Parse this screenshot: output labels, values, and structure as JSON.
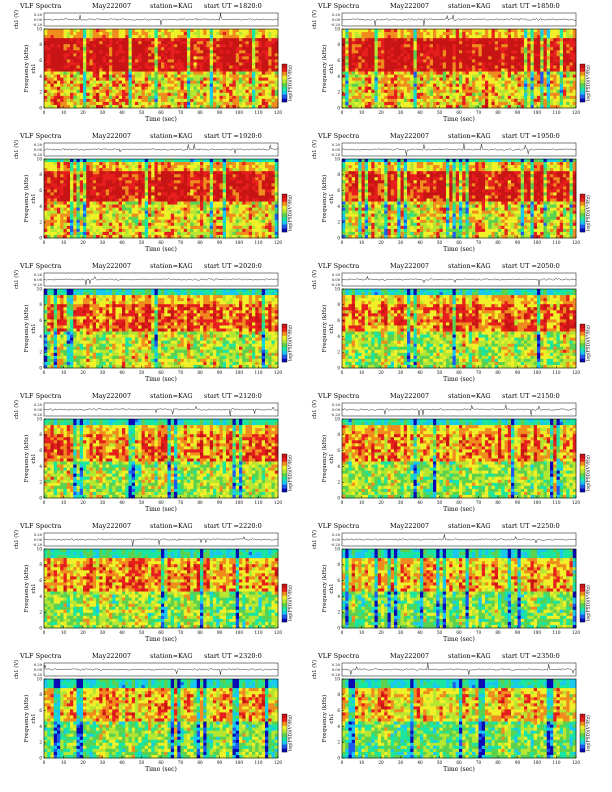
{
  "common": {
    "title_label": "VLF Spectra",
    "station": "station=KAG",
    "xlabel": "Time  (sec)",
    "ylabel_top": "ch1 (V)",
    "ylabel_spec": "Frequency (kHz)",
    "ylabel_spec_prefix": "ch1",
    "colorbar_label": "log(PSD)(V²/Hz)",
    "x_ticks": [
      "0",
      "10",
      "20",
      "30",
      "40",
      "50",
      "60",
      "70",
      "80",
      "90",
      "100",
      "110",
      "120"
    ],
    "y_ticks": [
      "0",
      "2",
      "4",
      "6",
      "8",
      "10"
    ],
    "top_ticks": [
      "0.20",
      "0.00",
      "-0.20"
    ],
    "cmap": [
      "#0a0ab4",
      "#1e5af0",
      "#19c8f0",
      "#19e6a0",
      "#5ad250",
      "#b4e632",
      "#f0f028",
      "#f08c1e",
      "#e61e1e",
      "#c81414"
    ]
  },
  "chart_data": [
    {
      "type": "heatmap",
      "date": "May222007",
      "ut": "start  UT =1820:0",
      "x_range": [
        0,
        120
      ],
      "y_range_khz": [
        0,
        10
      ],
      "band_top_khz": 10,
      "intensity": 0.95
    },
    {
      "type": "heatmap",
      "date": "May222007",
      "ut": "start  UT =1850:0",
      "x_range": [
        0,
        120
      ],
      "y_range_khz": [
        0,
        10
      ],
      "band_top_khz": 10,
      "intensity": 0.95
    },
    {
      "type": "heatmap",
      "date": "May222007",
      "ut": "start  UT =1920:0",
      "x_range": [
        0,
        120
      ],
      "y_range_khz": [
        0,
        10
      ],
      "band_top_khz": 9.5,
      "intensity": 0.85
    },
    {
      "type": "heatmap",
      "date": "May222007",
      "ut": "start  UT =1950:0",
      "x_range": [
        0,
        120
      ],
      "y_range_khz": [
        0,
        10
      ],
      "band_top_khz": 9.5,
      "intensity": 0.85
    },
    {
      "type": "heatmap",
      "date": "May222007",
      "ut": "start  UT =2020:0",
      "x_range": [
        0,
        120
      ],
      "y_range_khz": [
        0,
        10
      ],
      "band_top_khz": 9.3,
      "intensity": 0.65
    },
    {
      "type": "heatmap",
      "date": "May222007",
      "ut": "start  UT =2050:0",
      "x_range": [
        0,
        120
      ],
      "y_range_khz": [
        0,
        10
      ],
      "band_top_khz": 9.3,
      "intensity": 0.6
    },
    {
      "type": "heatmap",
      "date": "May222007",
      "ut": "start  UT =2120:0",
      "x_range": [
        0,
        120
      ],
      "y_range_khz": [
        0,
        10
      ],
      "band_top_khz": 9.2,
      "intensity": 0.55
    },
    {
      "type": "heatmap",
      "date": "May222007",
      "ut": "start  UT =2150:0",
      "x_range": [
        0,
        120
      ],
      "y_range_khz": [
        0,
        10
      ],
      "band_top_khz": 9.2,
      "intensity": 0.5
    },
    {
      "type": "heatmap",
      "date": "May222007",
      "ut": "start  UT =2220:0",
      "x_range": [
        0,
        120
      ],
      "y_range_khz": [
        0,
        10
      ],
      "band_top_khz": 9.0,
      "intensity": 0.45
    },
    {
      "type": "heatmap",
      "date": "May222007",
      "ut": "start  UT =2250:0",
      "x_range": [
        0,
        120
      ],
      "y_range_khz": [
        0,
        10
      ],
      "band_top_khz": 9.0,
      "intensity": 0.4
    },
    {
      "type": "heatmap",
      "date": "May222007",
      "ut": "start  UT =2320:0",
      "x_range": [
        0,
        120
      ],
      "y_range_khz": [
        0,
        10
      ],
      "band_top_khz": 9.0,
      "intensity": 0.4
    },
    {
      "type": "heatmap",
      "date": "May222007",
      "ut": "start  UT =2350:0",
      "x_range": [
        0,
        120
      ],
      "y_range_khz": [
        0,
        10
      ],
      "band_top_khz": 9.0,
      "intensity": 0.35
    }
  ]
}
